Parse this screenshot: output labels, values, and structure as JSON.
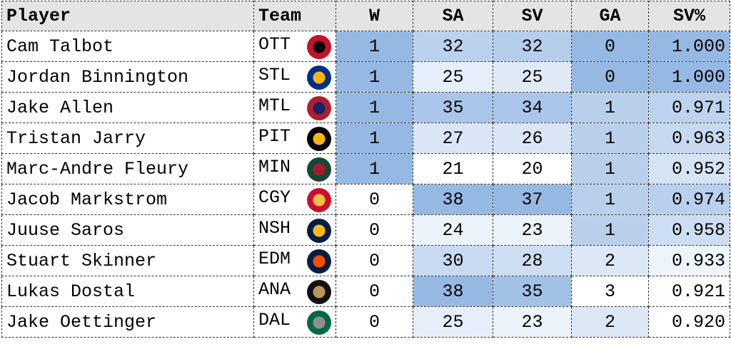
{
  "table": {
    "header": [
      "Player",
      "Team",
      "W",
      "SA",
      "SV",
      "GA",
      "SV%"
    ],
    "rows": [
      [
        "Cam Talbot",
        "OTT",
        1,
        32,
        32,
        0,
        "1.000"
      ],
      [
        "Jordan Binnington",
        "STL",
        1,
        25,
        25,
        0,
        "1.000"
      ],
      [
        "Jake Allen",
        "MTL",
        1,
        35,
        34,
        1,
        "0.971"
      ],
      [
        "Tristan Jarry",
        "PIT",
        1,
        27,
        26,
        1,
        "0.963"
      ],
      [
        "Marc-Andre Fleury",
        "MIN",
        1,
        21,
        20,
        1,
        "0.952"
      ],
      [
        "Jacob Markstrom",
        "CGY",
        0,
        38,
        37,
        1,
        "0.974"
      ],
      [
        "Juuse Saros",
        "NSH",
        0,
        24,
        23,
        1,
        "0.958"
      ],
      [
        "Stuart Skinner",
        "EDM",
        0,
        30,
        28,
        2,
        "0.933"
      ],
      [
        "Lukas Dostal",
        "ANA",
        0,
        38,
        35,
        3,
        "0.921"
      ],
      [
        "Jake Oettinger",
        "DAL",
        0,
        25,
        23,
        2,
        "0.920"
      ]
    ]
  }
}
